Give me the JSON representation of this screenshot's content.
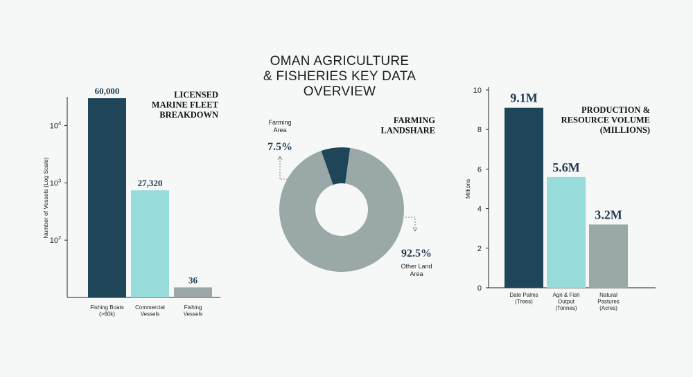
{
  "title_lines": [
    "OMAN AGRICULTURE",
    "& FISHERIES KEY DATA",
    "OVERVIEW"
  ],
  "colors": {
    "dark": "#1f4658",
    "light": "#97dcdb",
    "gray": "#9aa9a8",
    "value_text": "#1f3b52",
    "background": "#f6f7f7"
  },
  "chart_data": [
    {
      "type": "bar",
      "title_lines": [
        "LICENSED",
        "MARINE FLEET",
        "BREAKDOWN"
      ],
      "ylabel": "Number of Vessels (Log Scale)",
      "yscale": "log",
      "ylim": [
        10,
        30000
      ],
      "ticks": [
        {
          "base": "10",
          "exp": "2",
          "value": 100
        },
        {
          "base": "10",
          "exp": "3",
          "value": 1000
        },
        {
          "base": "10",
          "exp": "4",
          "value": 10000
        }
      ],
      "categories": [
        [
          "Fishing Boats",
          "(>60k)"
        ],
        [
          "Commercial",
          "Vessels"
        ],
        [
          "Fishing",
          "Vessels"
        ]
      ],
      "values": [
        60000,
        27320,
        36
      ],
      "display_values": [
        30000,
        740,
        15
      ],
      "value_labels": [
        "60,000",
        "27,320",
        "36"
      ],
      "colors": [
        "#1f4658",
        "#97dcdb",
        "#9aa9a8"
      ]
    },
    {
      "type": "pie",
      "title_lines": [
        "FARMING",
        "LANDSHARE"
      ],
      "slices": [
        {
          "label_lines": [
            "Farming",
            "Area"
          ],
          "value": 7.5,
          "value_label": "7.5%",
          "color": "#1f4658"
        },
        {
          "label_lines": [
            "Other Land",
            "Area"
          ],
          "value": 92.5,
          "value_label": "92.5%",
          "color": "#9aa9a8"
        }
      ],
      "donut": true
    },
    {
      "type": "bar",
      "title_lines": [
        "PRODUCTION &",
        "RESOURCE VOLUME",
        "(MILLIONS)"
      ],
      "ylabel": "Millions",
      "ylim": [
        0,
        10
      ],
      "yticks": [
        0,
        2,
        4,
        6,
        8,
        10
      ],
      "categories": [
        [
          "Date Palms",
          "(Trees)"
        ],
        [
          "Agri & Fish",
          "Output",
          "(Tonnes)"
        ],
        [
          "Natural",
          "Pastures",
          "(Acres)"
        ]
      ],
      "values": [
        9.1,
        5.6,
        3.2
      ],
      "value_labels": [
        "9.1M",
        "5.6M",
        "3.2M"
      ],
      "colors": [
        "#1f4658",
        "#97dcdb",
        "#9aa9a8"
      ]
    }
  ]
}
